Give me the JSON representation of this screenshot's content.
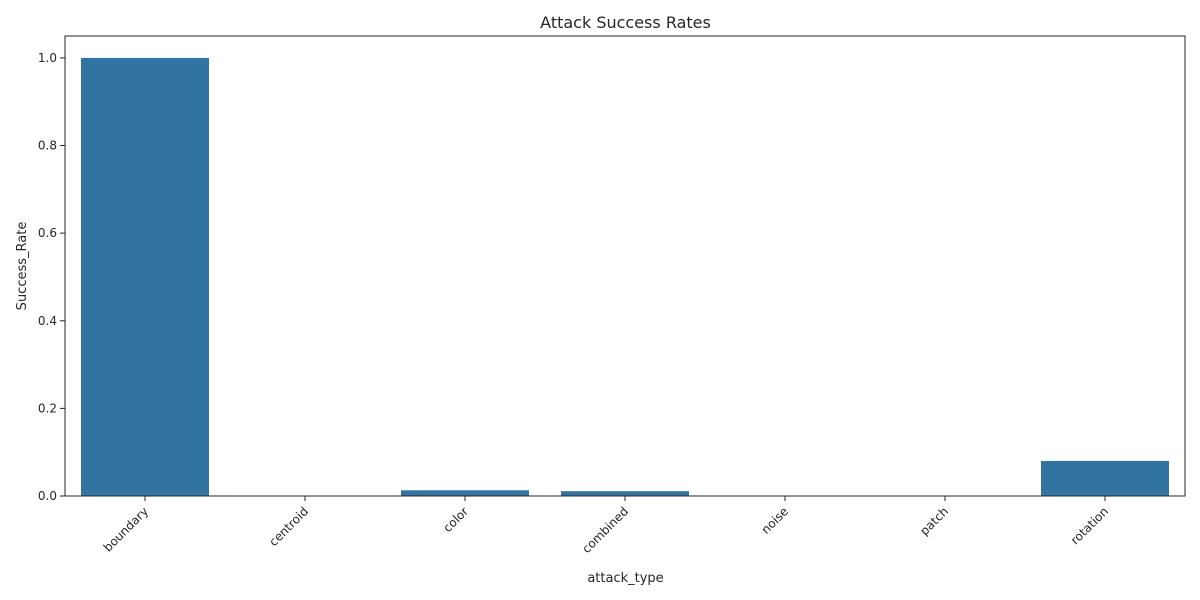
{
  "chart_data": {
    "type": "bar",
    "title": "Attack Success Rates",
    "xlabel": "attack_type",
    "ylabel": "Success_Rate",
    "categories": [
      "boundary",
      "centroid",
      "color",
      "combined",
      "noise",
      "patch",
      "rotation"
    ],
    "values": [
      1.0,
      0.0,
      0.013,
      0.011,
      0.0,
      0.0,
      0.08
    ],
    "ylim": [
      0,
      1.05
    ],
    "yticks": [
      "0.0",
      "0.2",
      "0.4",
      "0.6",
      "0.8",
      "1.0"
    ],
    "grid": false,
    "bar_color": "#3274a1"
  }
}
